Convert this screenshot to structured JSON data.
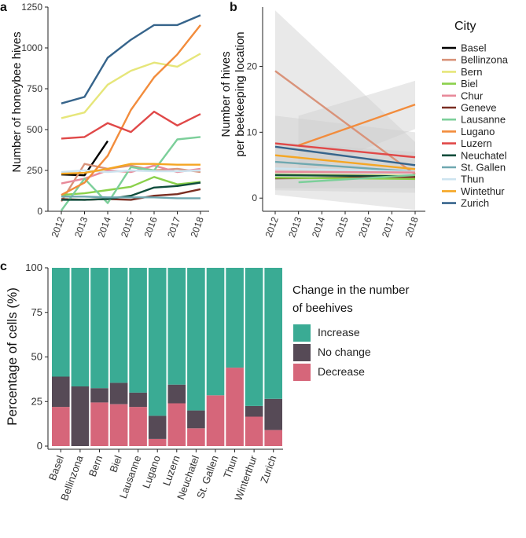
{
  "chart_data": [
    {
      "panel": "a",
      "type": "line",
      "ylabel": "Number of honeybee hives",
      "x": [
        2012,
        2013,
        2014,
        2015,
        2016,
        2017,
        2018
      ],
      "ylim": [
        0,
        1250
      ],
      "yticks": [
        0,
        250,
        500,
        750,
        1000,
        1250
      ],
      "series": [
        {
          "name": "Basel",
          "color": "#000000",
          "values": [
            225,
            220,
            430,
            null,
            null,
            null,
            null
          ]
        },
        {
          "name": "Bellinzona",
          "color": "#d9937a",
          "values": [
            60,
            290,
            260,
            280,
            250,
            260,
            240
          ]
        },
        {
          "name": "Bern",
          "color": "#e6e67a",
          "values": [
            570,
            605,
            775,
            860,
            910,
            885,
            965
          ]
        },
        {
          "name": "Biel",
          "color": "#8bd14b",
          "values": [
            100,
            110,
            130,
            150,
            210,
            165,
            180
          ]
        },
        {
          "name": "Chur",
          "color": "#e88a9a",
          "values": [
            170,
            200,
            250,
            240,
            280,
            240,
            260
          ]
        },
        {
          "name": "Geneve",
          "color": "#7a2e22",
          "values": [
            75,
            70,
            75,
            70,
            95,
            105,
            135
          ]
        },
        {
          "name": "Lausanne",
          "color": "#7ccf9a",
          "values": [
            5,
            200,
            50,
            270,
            250,
            440,
            455
          ]
        },
        {
          "name": "Lugano",
          "color": "#f28c3c",
          "values": [
            100,
            175,
            340,
            620,
            820,
            960,
            1140
          ]
        },
        {
          "name": "Luzern",
          "color": "#e04848",
          "values": [
            445,
            455,
            540,
            485,
            610,
            525,
            595
          ]
        },
        {
          "name": "Neuchatel",
          "color": "#0f4d3c",
          "values": [
            70,
            70,
            75,
            95,
            145,
            155,
            175
          ]
        },
        {
          "name": "St. Gallen",
          "color": "#6fa8b0",
          "values": [
            90,
            90,
            85,
            85,
            85,
            80,
            80
          ]
        },
        {
          "name": "Thun",
          "color": "#cde4f0",
          "values": [
            240,
            250,
            240,
            250,
            245,
            245,
            250
          ]
        },
        {
          "name": "Wintethur",
          "color": "#f5a623",
          "values": [
            230,
            235,
            260,
            290,
            290,
            285,
            285
          ]
        },
        {
          "name": "Zurich",
          "color": "#36648b",
          "values": [
            660,
            700,
            940,
            1050,
            1140,
            1140,
            1200
          ]
        }
      ]
    },
    {
      "panel": "b",
      "type": "line",
      "ylabel": "Number of hives per beekeeping location",
      "x": [
        2012,
        2013,
        2014,
        2015,
        2016,
        2017,
        2018
      ],
      "ylim": [
        -2,
        29
      ],
      "yticks": [
        0,
        10,
        20
      ],
      "series": [
        {
          "name": "Bellinzona",
          "color": "#d9937a",
          "start": [
            2012,
            19.3
          ],
          "end": [
            2018,
            3.6
          ]
        },
        {
          "name": "Lugano",
          "color": "#f28c3c",
          "start": [
            2013,
            8.0
          ],
          "end": [
            2018,
            14.2
          ]
        },
        {
          "name": "Luzern",
          "color": "#e04848",
          "start": [
            2012,
            8.3
          ],
          "end": [
            2018,
            6.2
          ]
        },
        {
          "name": "Zurich",
          "color": "#36648b",
          "start": [
            2012,
            7.8
          ],
          "end": [
            2018,
            5.0
          ]
        },
        {
          "name": "Wintethur",
          "color": "#f5a623",
          "start": [
            2012,
            6.5
          ],
          "end": [
            2018,
            4.4
          ]
        },
        {
          "name": "St. Gallen",
          "color": "#6fa8b0",
          "start": [
            2012,
            5.5
          ],
          "end": [
            2018,
            4.0
          ]
        },
        {
          "name": "Thun",
          "color": "#cde4f0",
          "start": [
            2012,
            4.5
          ],
          "end": [
            2018,
            4.0
          ]
        },
        {
          "name": "Chur",
          "color": "#e88a9a",
          "start": [
            2012,
            4.0
          ],
          "end": [
            2018,
            3.9
          ]
        },
        {
          "name": "Bern",
          "color": "#e6e67a",
          "start": [
            2012,
            3.6
          ],
          "end": [
            2018,
            3.4
          ]
        },
        {
          "name": "Neuchatel",
          "color": "#0f4d3c",
          "start": [
            2012,
            3.5
          ],
          "end": [
            2018,
            3.3
          ]
        },
        {
          "name": "Geneve",
          "color": "#7a2e22",
          "start": [
            2012,
            3.0
          ],
          "end": [
            2018,
            3.2
          ]
        },
        {
          "name": "Biel",
          "color": "#8bd14b",
          "start": [
            2012,
            3.1
          ],
          "end": [
            2018,
            2.9
          ]
        },
        {
          "name": "Lausanne",
          "color": "#7ccf9a",
          "start": [
            2013,
            2.4
          ],
          "end": [
            2018,
            3.5
          ]
        }
      ],
      "bands": [
        {
          "start": [
            2012,
            0.5,
            28.5
          ],
          "end": [
            2018,
            -1.8,
            8.5
          ]
        },
        {
          "start": [
            2013,
            3.5,
            12.5
          ],
          "end": [
            2018,
            10.5,
            17.8
          ]
        },
        {
          "start": [
            2012,
            1.5,
            12.5
          ],
          "end": [
            2018,
            1.5,
            10.0
          ]
        },
        {
          "start": [
            2012,
            1.2,
            8.5
          ],
          "end": [
            2018,
            0.8,
            7.0
          ]
        }
      ]
    },
    {
      "panel": "c",
      "type": "bar",
      "stacked": true,
      "ylabel": "Percentage of cells (%)",
      "ylim": [
        0,
        100
      ],
      "yticks": [
        0,
        25,
        50,
        75,
        100
      ],
      "categories": [
        "Basel",
        "Bellinzona",
        "Bern",
        "Biel",
        "Lausanne",
        "Lugano",
        "Luzern",
        "Neuchatel",
        "St. Gallen",
        "Thun",
        "Winterthur",
        "Zurich"
      ],
      "series": [
        {
          "name": "Decrease",
          "color": "#d6667a",
          "values": [
            22,
            0,
            24.5,
            23.5,
            22,
            4,
            24,
            10,
            28.5,
            44,
            16.5,
            9
          ]
        },
        {
          "name": "No change",
          "color": "#564a56",
          "values": [
            17,
            33.5,
            8,
            12,
            8,
            13,
            10.5,
            10,
            0,
            0,
            6,
            17.5
          ]
        },
        {
          "name": "Increase",
          "color": "#3aab94",
          "values": [
            61,
            66.5,
            67.5,
            64.5,
            70,
            83,
            65.5,
            80,
            71.5,
            56,
            77.5,
            73.5
          ]
        }
      ]
    }
  ],
  "labels": {
    "a": "a",
    "b": "b",
    "c": "c"
  },
  "legend_city": {
    "title": "City",
    "items": [
      {
        "name": "Basel",
        "color": "#000000"
      },
      {
        "name": "Bellinzona",
        "color": "#d9937a"
      },
      {
        "name": "Bern",
        "color": "#e6e67a"
      },
      {
        "name": "Biel",
        "color": "#8bd14b"
      },
      {
        "name": "Chur",
        "color": "#e88a9a"
      },
      {
        "name": "Geneve",
        "color": "#7a2e22"
      },
      {
        "name": "Lausanne",
        "color": "#7ccf9a"
      },
      {
        "name": "Lugano",
        "color": "#f28c3c"
      },
      {
        "name": "Luzern",
        "color": "#e04848"
      },
      {
        "name": "Neuchatel",
        "color": "#0f4d3c"
      },
      {
        "name": "St. Gallen",
        "color": "#6fa8b0"
      },
      {
        "name": "Thun",
        "color": "#cde4f0"
      },
      {
        "name": "Wintethur",
        "color": "#f5a623"
      },
      {
        "name": "Zurich",
        "color": "#36648b"
      }
    ]
  },
  "legend_change": {
    "title_line1": "Change in the number",
    "title_line2": "of beehives",
    "items": [
      {
        "name": "Increase",
        "color": "#3aab94"
      },
      {
        "name": "No change",
        "color": "#564a56"
      },
      {
        "name": "Decrease",
        "color": "#d6667a"
      }
    ]
  },
  "ylabel_b_line1": "Number of hives",
  "ylabel_b_line2": "per beekeeping location"
}
